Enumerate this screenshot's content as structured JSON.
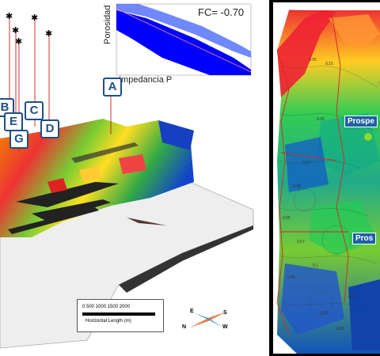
{
  "scatter_inset": {
    "annotation": "FC= -0.70",
    "xlabel": "Impedancia P",
    "ylabel": "Porosidad"
  },
  "wells": [
    "A",
    "B",
    "C",
    "D",
    "E",
    "G"
  ],
  "scale_bar": {
    "ticks": "0    500   1000   1500 2000",
    "caption": "Horizontal Length (m)"
  },
  "compass": {
    "n": "N",
    "e": "E",
    "s": "S",
    "w": "W"
  },
  "map": {
    "prospect_1": "Prospe",
    "prospect_2": "Pros",
    "contour_labels": [
      "0.05",
      "0.07",
      "0.15",
      "0.08",
      "0.1",
      "0.05",
      "0.07",
      "0.05",
      "0.01",
      "0.05",
      "0.09",
      "0.05"
    ]
  },
  "colors": {
    "label_border": "#1d4f86",
    "scatter": "#0000ff",
    "prospect_bg": "#1f5fa5"
  }
}
